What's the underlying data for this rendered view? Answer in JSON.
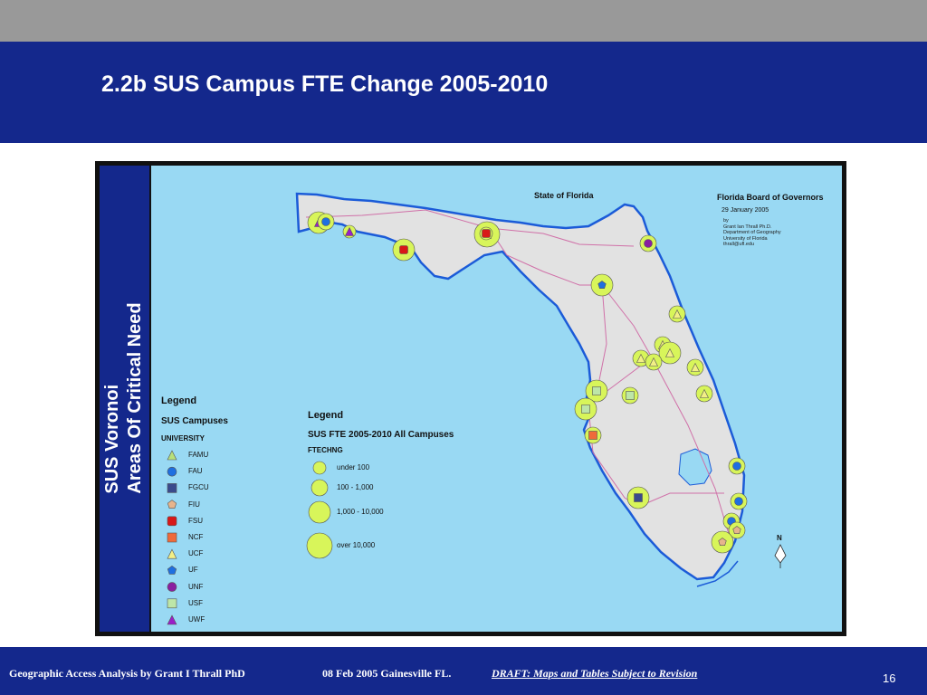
{
  "slide": {
    "title": "2.2b SUS Campus FTE Change 2005-2010",
    "sidebar_line1": "SUS Voronoi",
    "sidebar_line2": "Areas Of Critical Need"
  },
  "map": {
    "state_label": "State of Florida",
    "board": {
      "title": "Florida Board of Governors",
      "date": "29 January 2005",
      "credits": [
        "by",
        "Grant Ian Thrall Ph.D.",
        "Department of Geography",
        "University of Florida",
        "thrall@ufl.edu"
      ]
    },
    "north_arrow_letter": "N",
    "colors": {
      "land": "#e2e2e2",
      "sea": "#99d9f3",
      "circle": "#d8f55a",
      "road": "#d070a8",
      "coast": "#1b5bd8"
    }
  },
  "legend_campuses": {
    "title": "Legend",
    "subtitle": "SUS Campuses",
    "field": "UNIVERSITY",
    "items": [
      {
        "label": "FAMU",
        "symbol": "triangle",
        "color": "#b8e07a"
      },
      {
        "label": "FAU",
        "symbol": "circle",
        "color": "#1f6fe0"
      },
      {
        "label": "FGCU",
        "symbol": "square",
        "color": "#3a4a8c"
      },
      {
        "label": "FIU",
        "symbol": "pentagon",
        "color": "#e6b48c"
      },
      {
        "label": "FSU",
        "symbol": "rounded-square",
        "color": "#d81818"
      },
      {
        "label": "NCF",
        "symbol": "square",
        "color": "#ef6a3a"
      },
      {
        "label": "UCF",
        "symbol": "triangle",
        "color": "#f2ef86"
      },
      {
        "label": "UF",
        "symbol": "pentagon",
        "color": "#1f6fe0"
      },
      {
        "label": "UNF",
        "symbol": "circle",
        "color": "#8a1fa0"
      },
      {
        "label": "USF",
        "symbol": "square",
        "color": "#bde6a8"
      },
      {
        "label": "UWF",
        "symbol": "triangle",
        "color": "#9b1fc8"
      }
    ]
  },
  "legend_fte": {
    "title": "Legend",
    "subtitle": "SUS FTE 2005-2010 All Campuses",
    "field": "FTECHNG",
    "classes": [
      "under 100",
      "100 - 1,000",
      "1,000 - 10,000",
      "over 10,000"
    ]
  },
  "footer": {
    "author": "Geographic Access Analysis by Grant I Thrall PhD",
    "date_place": "08 Feb 2005  Gainesville FL.",
    "draft": "DRAFT:  Maps and Tables Subject to Revision",
    "page": "16"
  }
}
